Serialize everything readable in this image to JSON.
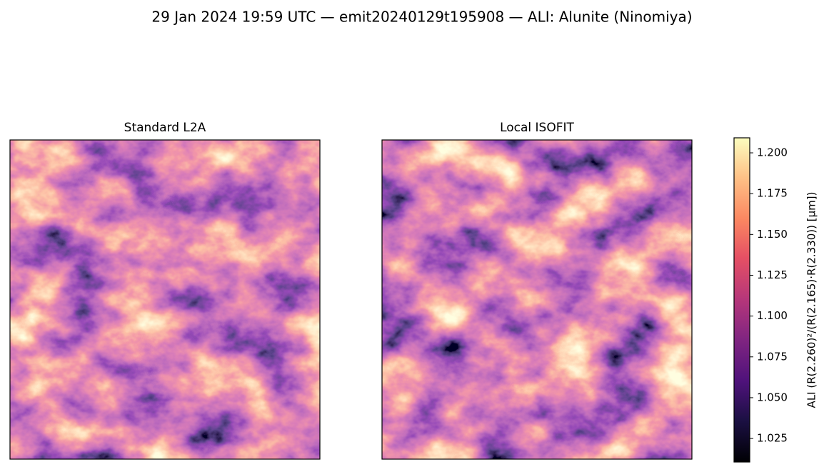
{
  "chart_data": {
    "type": "image",
    "title": "29 Jan 2024 19:59 UTC — emit20240129t195908 — ALI: Alunite (Ninomiya)",
    "panels": [
      {
        "title": "Standard L2A"
      },
      {
        "title": "Local ISOFIT"
      }
    ],
    "colorbar": {
      "label": "ALI  (R(2.260)²/(R(2.165)·R(2.330))  [µm])",
      "lim": [
        1.0106,
        1.2092
      ],
      "ticks": [
        1.025,
        {
          "value": 1.05,
          "label": "1.050"
        },
        1.075,
        {
          "value": 1.1,
          "label": "1.100"
        },
        1.125,
        {
          "value": 1.15,
          "label": "1.150"
        },
        1.175,
        {
          "value": 1.2,
          "label": "1.200"
        }
      ]
    }
  }
}
